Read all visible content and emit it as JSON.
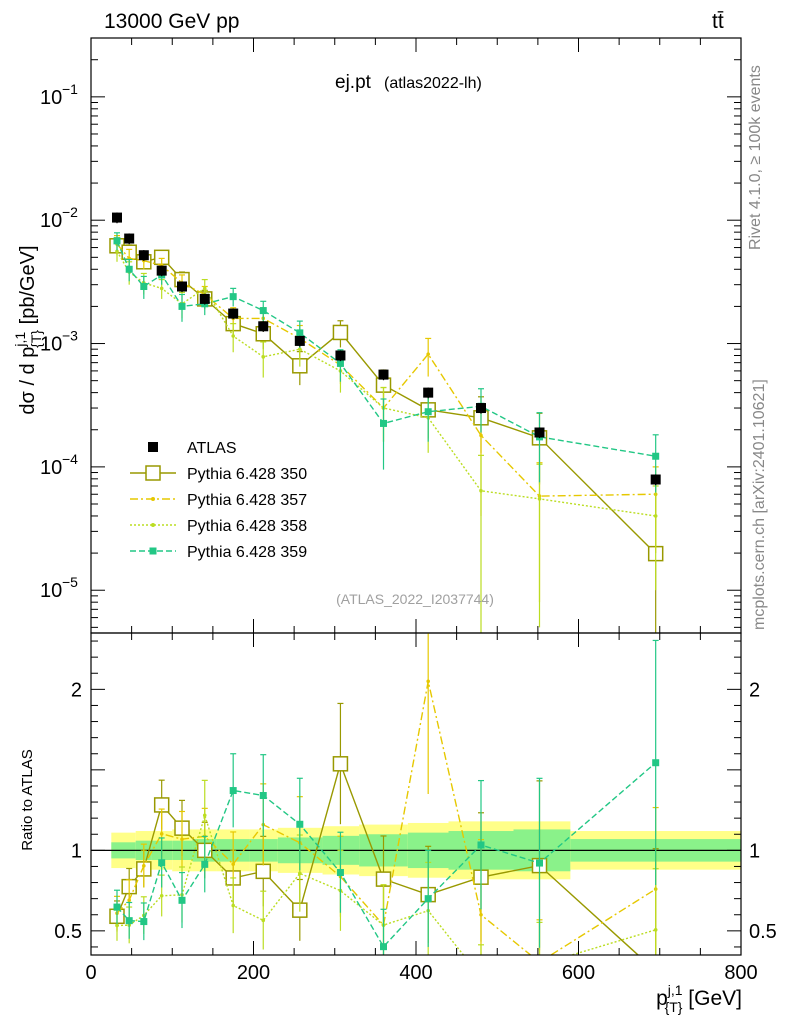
{
  "header": {
    "energy_label": "13000 GeV pp",
    "process_label": "tt̄"
  },
  "side": {
    "rivet_label": "Rivet 4.1.0, ≥ 100k events",
    "mcplots_label": "mcplots.cern.ch [arXiv:2401.10621]"
  },
  "chart_data": {
    "type": "line",
    "title": "ej.pt",
    "subtitle": "(atlas2022-lh)",
    "analysis_id": "(ATLAS_2022_I2037744)",
    "xlabel": "p_{T}^{j,1} [GeV]",
    "ylabel": "dσ / d p_{T}^{j,1} [pb/GeV]",
    "ratio_ylabel": "Ratio to ATLAS",
    "xlim": [
      0,
      800
    ],
    "ylim": [
      4.5e-06,
      0.3
    ],
    "ratio_ylim": [
      0.35,
      2.35
    ],
    "x_ticks": [
      0,
      200,
      400,
      600,
      800
    ],
    "y_ticks": [
      {
        "value": 1e-05,
        "label": "10",
        "exp": "−5"
      },
      {
        "value": 0.0001,
        "label": "10",
        "exp": "−4"
      },
      {
        "value": 0.001,
        "label": "10",
        "exp": "−3"
      },
      {
        "value": 0.01,
        "label": "10",
        "exp": "−2"
      },
      {
        "value": 0.1,
        "label": "10",
        "exp": "−1"
      }
    ],
    "ratio_ticks": [
      0.5,
      1,
      2
    ],
    "ratio_tick_labels": [
      "0.5",
      "1",
      "2"
    ],
    "bins": [
      [
        25,
        40
      ],
      [
        40,
        55
      ],
      [
        55,
        75
      ],
      [
        75,
        100
      ],
      [
        100,
        125
      ],
      [
        125,
        155
      ],
      [
        155,
        195
      ],
      [
        195,
        230
      ],
      [
        230,
        285
      ],
      [
        285,
        330
      ],
      [
        330,
        390
      ],
      [
        390,
        440
      ],
      [
        440,
        520
      ],
      [
        520,
        590
      ],
      [
        590,
        800
      ]
    ],
    "x": [
      32,
      47,
      65,
      87,
      112,
      140,
      175,
      212,
      257,
      307,
      360,
      415,
      480,
      552,
      695
    ],
    "data": {
      "name": "ATLAS",
      "values": [
        0.0105,
        0.0071,
        0.0052,
        0.0039,
        0.0029,
        0.0023,
        0.00175,
        0.00138,
        0.00105,
        0.0008,
        0.00056,
        0.0004,
        0.0003,
        0.00019,
        7.9e-05
      ],
      "band_inner": [
        0.05,
        0.05,
        0.06,
        0.06,
        0.06,
        0.07,
        0.07,
        0.07,
        0.08,
        0.09,
        0.1,
        0.11,
        0.12,
        0.13,
        0.07
      ],
      "band_outer": [
        0.11,
        0.11,
        0.12,
        0.12,
        0.13,
        0.13,
        0.13,
        0.13,
        0.14,
        0.15,
        0.16,
        0.17,
        0.18,
        0.18,
        0.12
      ]
    },
    "series": [
      {
        "name": "Pythia 6.428 350",
        "color": "#999900",
        "dash": "",
        "marker": "open-square",
        "values": [
          0.0062,
          0.0055,
          0.0046,
          0.005,
          0.0033,
          0.0023,
          0.00145,
          0.0012,
          0.00066,
          0.00123,
          0.00046,
          0.00029,
          0.00025,
          0.000172,
          1.98e-05
        ],
        "errors": [
          0.001,
          0.0008,
          0.0006,
          0.0006,
          0.0005,
          0.0004,
          0.0003,
          0.0003,
          0.0002,
          0.0003,
          0.00015,
          0.00012,
          0.00012,
          0.0001,
          6e-05
        ]
      },
      {
        "name": "Pythia 6.428 357",
        "color": "#e6c800",
        "dash": "8,3,2,3",
        "marker": "dot",
        "values": [
          0.0064,
          0.0049,
          0.0047,
          0.0043,
          0.0031,
          0.0025,
          0.0016,
          0.0016,
          0.0011,
          0.00067,
          0.0003,
          0.00082,
          0.00018,
          5.8e-05,
          6e-05
        ],
        "errors": [
          0.0011,
          0.0009,
          0.0007,
          0.0006,
          0.0005,
          0.0004,
          0.00035,
          0.00035,
          0.0003,
          0.0002,
          0.00014,
          0.00028,
          0.00014,
          5e-05,
          4e-05
        ]
      },
      {
        "name": "Pythia 6.428 358",
        "color": "#bbdd22",
        "dash": "2,2",
        "marker": "dot",
        "values": [
          0.0056,
          0.0038,
          0.0031,
          0.0028,
          0.0021,
          0.0028,
          0.00115,
          0.00078,
          0.0009,
          0.0006,
          0.0003,
          0.00025,
          6.4e-05,
          5.5e-05,
          4e-05
        ],
        "errors": [
          0.001,
          0.0008,
          0.0006,
          0.0005,
          0.0005,
          0.0005,
          0.0003,
          0.00025,
          0.00025,
          0.0002,
          0.00014,
          0.00012,
          6e-05,
          5e-05,
          3e-05
        ]
      },
      {
        "name": "Pythia 6.428 359",
        "color": "#22c785",
        "dash": "6,3",
        "marker": "filled-square",
        "values": [
          0.0068,
          0.004,
          0.0029,
          0.0036,
          0.002,
          0.0021,
          0.0024,
          0.00185,
          0.00122,
          0.00069,
          0.000225,
          0.00028,
          0.00031,
          0.000175,
          0.000122
        ],
        "errors": [
          0.0011,
          0.0008,
          0.0006,
          0.0006,
          0.0005,
          0.0004,
          0.0004,
          0.00035,
          0.0003,
          0.0002,
          0.00013,
          0.00012,
          0.00012,
          0.0001,
          6e-05
        ]
      }
    ]
  }
}
